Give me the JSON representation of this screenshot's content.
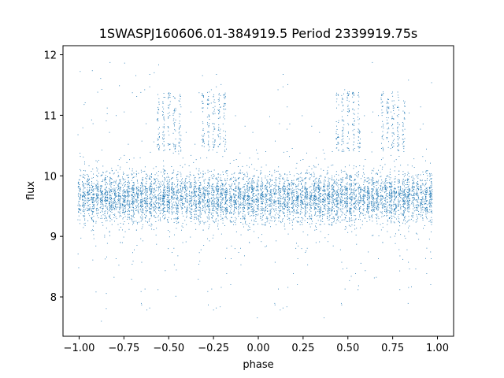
{
  "chart_data": {
    "type": "scatter",
    "title": "1SWASPJ160606.01-384919.5 Period 2339919.75s",
    "xlabel": "phase",
    "ylabel": "flux",
    "xlim": [
      -1.09,
      1.09
    ],
    "ylim": [
      7.35,
      12.15
    ],
    "xticks": [
      -1.0,
      -0.75,
      -0.5,
      -0.25,
      0.0,
      0.25,
      0.5,
      0.75,
      1.0
    ],
    "xtick_labels": [
      "−1.00",
      "−0.75",
      "−0.50",
      "−0.25",
      "0.00",
      "0.25",
      "0.50",
      "0.75",
      "1.00"
    ],
    "yticks": [
      8,
      9,
      10,
      11,
      12
    ],
    "ytick_labels": [
      "8",
      "9",
      "10",
      "11",
      "12"
    ],
    "grid": false,
    "point_color": "#1f77b4",
    "series": [
      {
        "x_range": [
          -1.0,
          0.96
        ],
        "y_center": 9.65,
        "y_core_range": [
          9.0,
          10.35
        ],
        "y_outlier_range": [
          7.6,
          11.95
        ],
        "elevated_phases": [
          -0.5,
          -0.25,
          0.5,
          0.75
        ],
        "elevated_y_range": [
          10.4,
          11.4
        ],
        "note_points": "dense vertical streaks of small points"
      }
    ]
  }
}
